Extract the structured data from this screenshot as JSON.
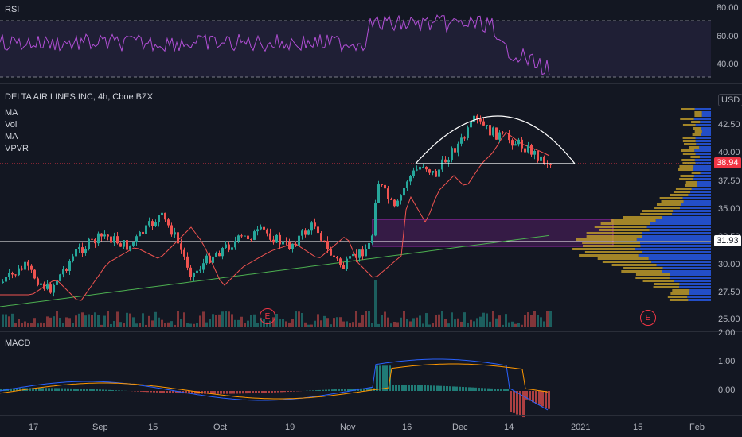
{
  "panes": {
    "rsi": {
      "title": "RSI",
      "axis_ticks": [
        "80.00",
        "60.00",
        "40.00"
      ],
      "levels": {
        "upper": 70,
        "lower": 30
      },
      "line_color": "#b24fd6"
    },
    "main": {
      "symbol_title": "DELTA AIR LINES INC, 4h, Cboe BZX",
      "indicators": [
        "MA",
        "Vol",
        "MA",
        "VPVR"
      ],
      "currency": "USD",
      "axis_ticks": [
        "42.50",
        "40.00",
        "37.50",
        "35.00",
        "32.50",
        "30.00",
        "27.50",
        "25.00"
      ],
      "last_price_tag": "38.94",
      "last_price_color": "#f23645",
      "horizontal_line_tag": "31.93",
      "earnings_marker": "E",
      "colors": {
        "up": "#26a69a",
        "down": "#ef5350",
        "ma_fast": "#ef5350",
        "ma_slow": "#4caf50",
        "zone": "#9c27b0",
        "vpvr_up": "#2962ff",
        "vpvr_down": "#c7a12a"
      }
    },
    "macd": {
      "title": "MACD",
      "axis_ticks": [
        "2.00",
        "1.00",
        "0.00"
      ],
      "macd_color": "#2962ff",
      "signal_color": "#ff9800"
    }
  },
  "time_axis": [
    "17",
    "Sep",
    "15",
    "Oct",
    "19",
    "Nov",
    "16",
    "Dec",
    "14",
    "2021",
    "15",
    "Feb"
  ],
  "icons": {
    "earnings": "earnings-badge-icon"
  }
}
